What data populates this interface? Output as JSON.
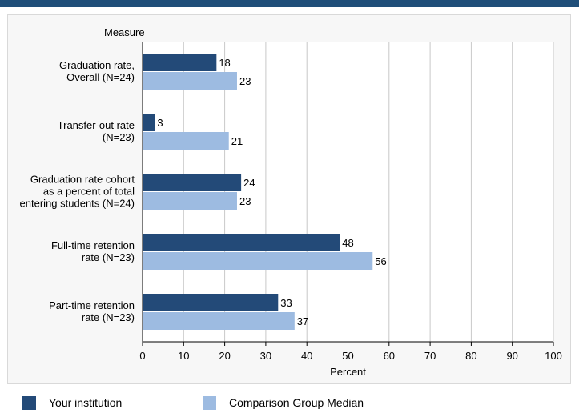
{
  "colors": {
    "accent": "#1f4e79",
    "series1": "#234a78",
    "series2": "#9dbbe1",
    "grid": "#c8c8c8"
  },
  "chart_data": {
    "type": "bar",
    "orientation": "horizontal",
    "ylabel": "Measure",
    "xlabel": "Percent",
    "xlim": [
      0,
      100
    ],
    "xticks": [
      0,
      10,
      20,
      30,
      40,
      50,
      60,
      70,
      80,
      90,
      100
    ],
    "grid": true,
    "legend_position": "bottom",
    "categories": [
      [
        "Graduation rate,",
        "Overall (N=24)"
      ],
      [
        "Transfer-out rate",
        "(N=23)"
      ],
      [
        "Graduation rate cohort",
        "as a percent of total",
        "entering students (N=24)"
      ],
      [
        "Full-time retention",
        "rate (N=23)"
      ],
      [
        "Part-time retention",
        "rate (N=23)"
      ]
    ],
    "series": [
      {
        "name": "Your institution",
        "values": [
          18,
          3,
          24,
          48,
          33
        ]
      },
      {
        "name": "Comparison Group Median",
        "values": [
          23,
          21,
          23,
          56,
          37
        ]
      }
    ]
  }
}
